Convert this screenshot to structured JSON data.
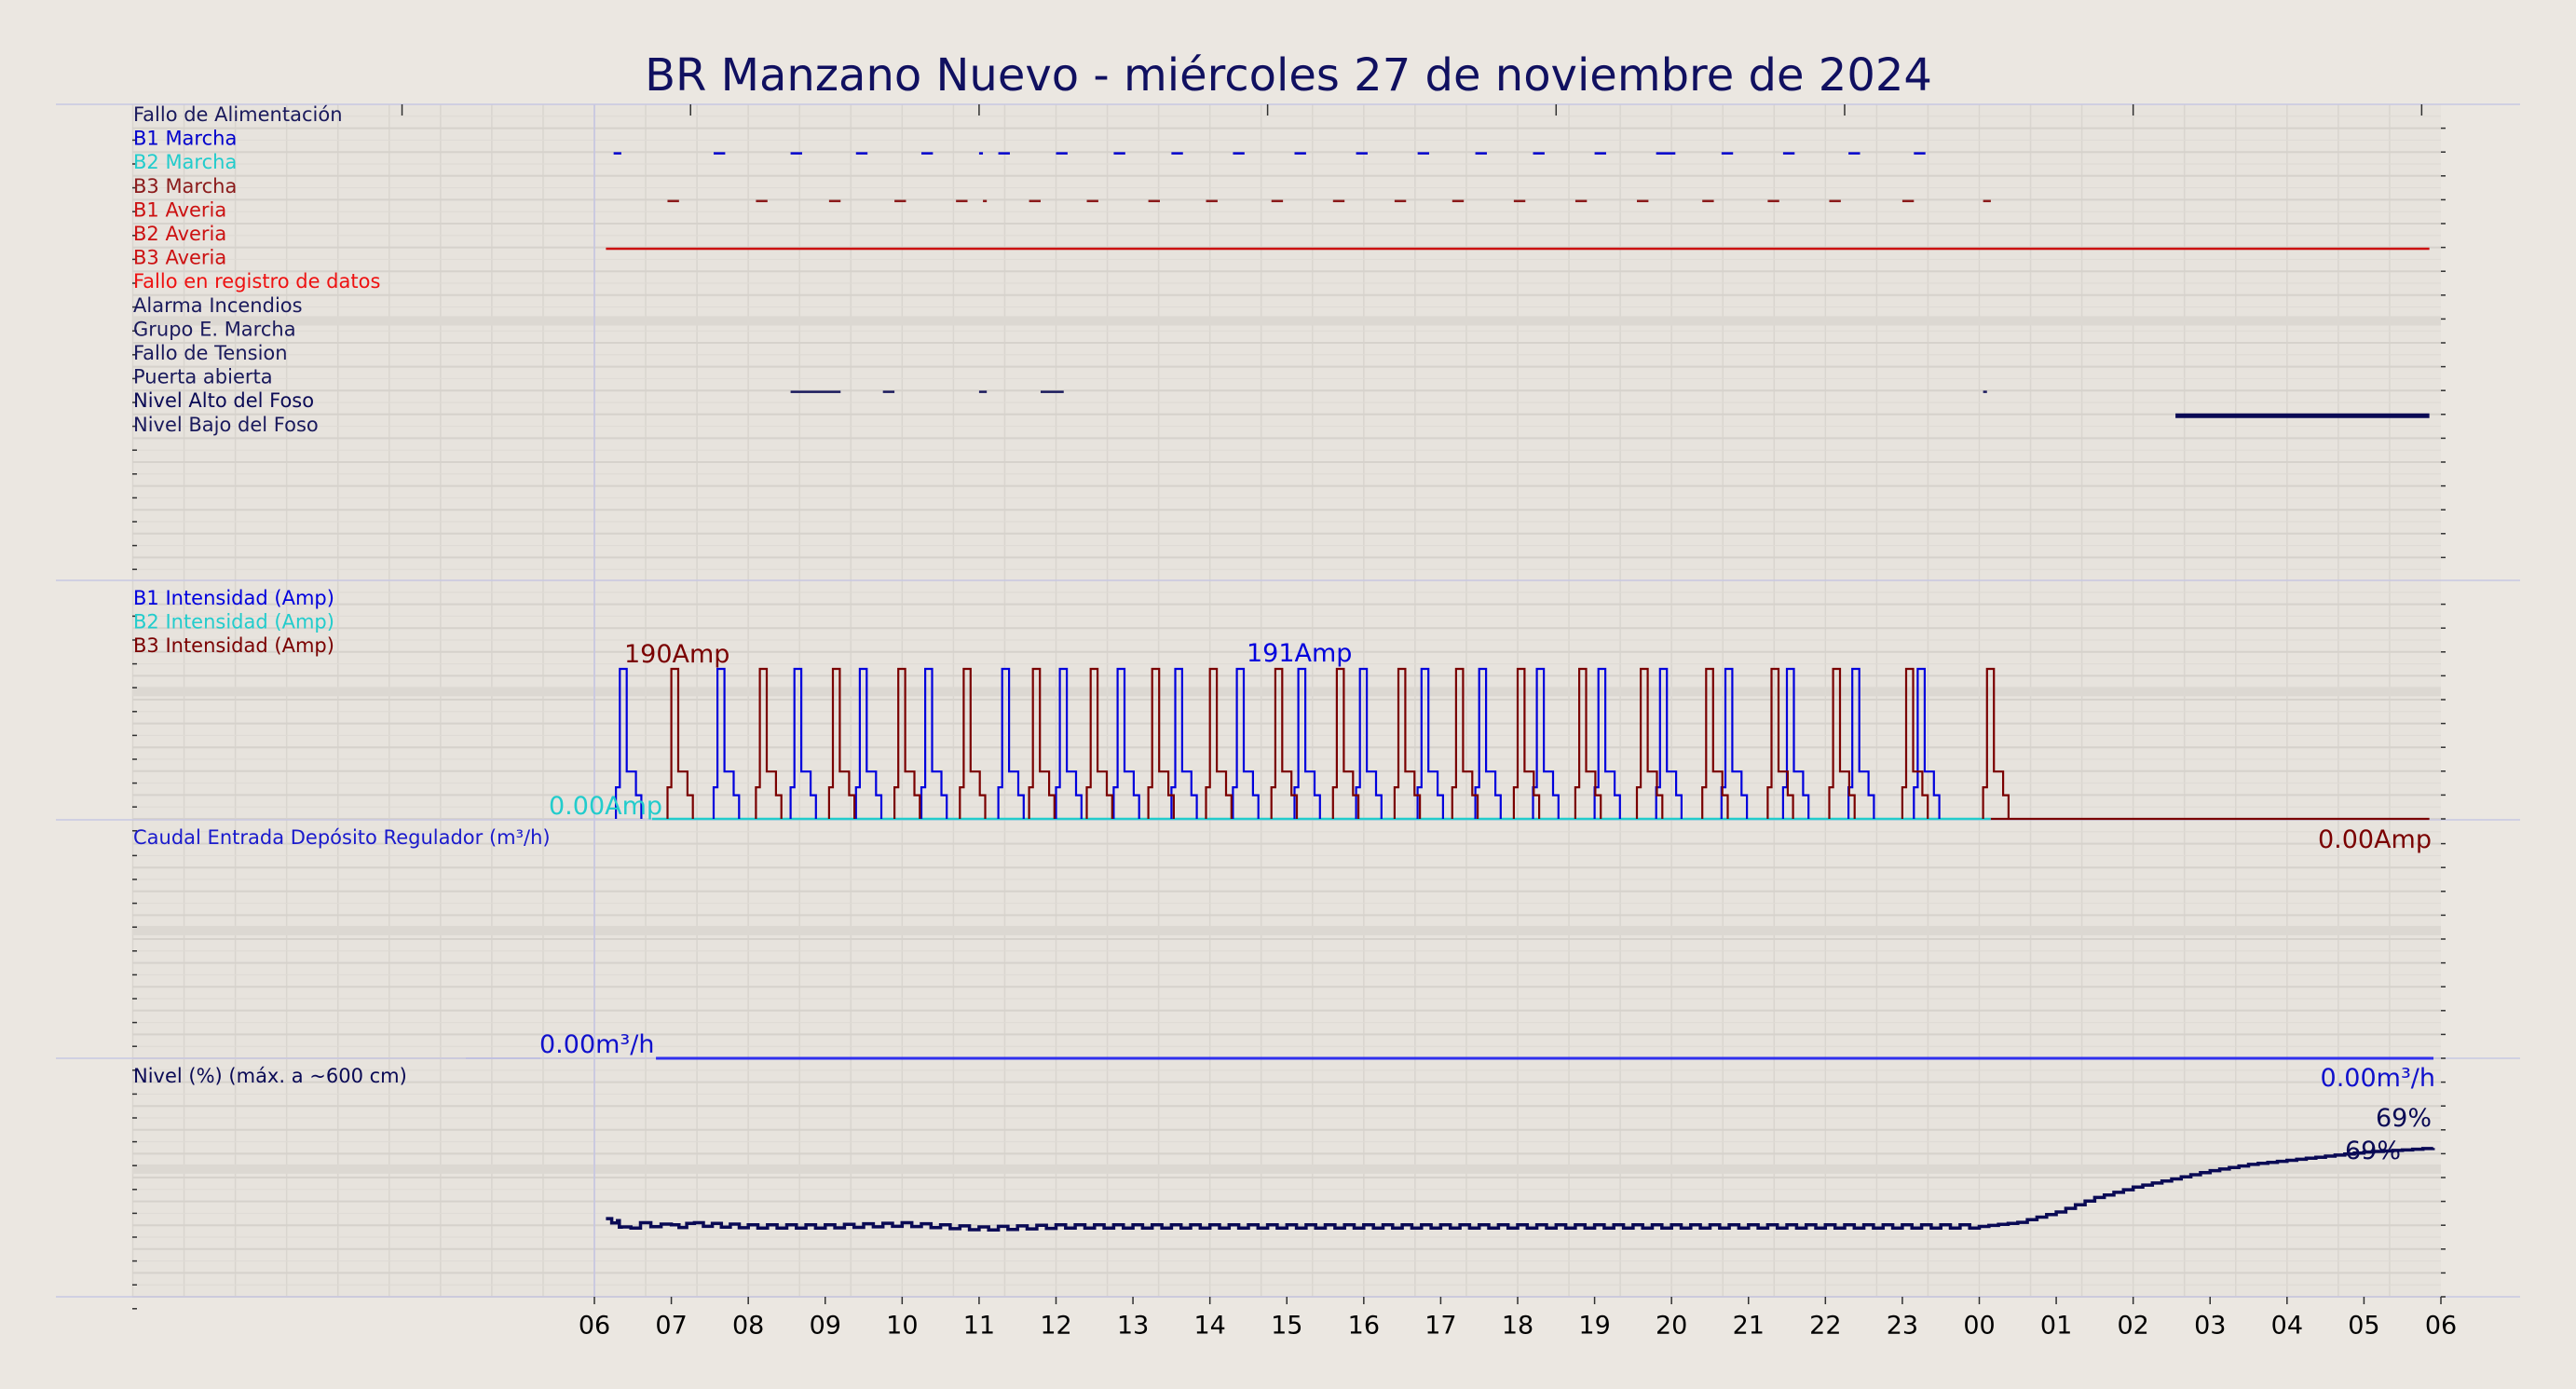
{
  "chart_data": {
    "type": "line",
    "title": "BR Manzano Nuevo   -   miércoles 27 de noviembre de 2024",
    "x_tick_labels": [
      "06",
      "07",
      "08",
      "09",
      "10",
      "11",
      "12",
      "13",
      "14",
      "15",
      "16",
      "17",
      "18",
      "19",
      "20",
      "21",
      "22",
      "23",
      "00",
      "01",
      "02",
      "03",
      "04",
      "05",
      "06"
    ],
    "x_unit": "hour",
    "x_range_hours": [
      0,
      24
    ],
    "top_marks_hours": [
      -2.5,
      1.25,
      5,
      8.75,
      12.5,
      16.25,
      20,
      23.75
    ],
    "grid": true,
    "panels": [
      {
        "id": "status",
        "type": "event_timeline",
        "rows": [
          {
            "label": "Fallo de Alimentación",
            "color": "#1a1a5c",
            "segments": []
          },
          {
            "label": "B1 Marcha",
            "color": "#0000cc",
            "segments": [
              [
                0.25,
                0.35
              ],
              [
                1.55,
                1.7
              ],
              [
                2.55,
                2.7
              ],
              [
                3.4,
                3.55
              ],
              [
                4.25,
                4.4
              ],
              [
                5.0,
                5.05
              ],
              [
                5.25,
                5.4
              ],
              [
                6.0,
                6.15
              ],
              [
                6.75,
                6.9
              ],
              [
                7.5,
                7.65
              ],
              [
                8.3,
                8.45
              ],
              [
                9.1,
                9.25
              ],
              [
                9.9,
                10.05
              ],
              [
                10.7,
                10.85
              ],
              [
                11.45,
                11.6
              ],
              [
                12.2,
                12.35
              ],
              [
                13.0,
                13.15
              ],
              [
                13.8,
                14.05
              ],
              [
                14.65,
                14.8
              ],
              [
                15.45,
                15.6
              ],
              [
                16.3,
                16.45
              ],
              [
                17.15,
                17.3
              ]
            ]
          },
          {
            "label": "B2 Marcha",
            "color": "#22cccc",
            "segments": []
          },
          {
            "label": "B3 Marcha",
            "color": "#8b1a1a",
            "segments": [
              [
                0.95,
                1.1
              ],
              [
                2.1,
                2.25
              ],
              [
                3.05,
                3.2
              ],
              [
                3.9,
                4.05
              ],
              [
                4.7,
                4.85
              ],
              [
                5.05,
                5.1
              ],
              [
                5.65,
                5.8
              ],
              [
                6.4,
                6.55
              ],
              [
                7.2,
                7.35
              ],
              [
                7.95,
                8.1
              ],
              [
                8.8,
                8.95
              ],
              [
                9.6,
                9.75
              ],
              [
                10.4,
                10.55
              ],
              [
                11.15,
                11.3
              ],
              [
                11.95,
                12.1
              ],
              [
                12.75,
                12.9
              ],
              [
                13.55,
                13.7
              ],
              [
                14.4,
                14.55
              ],
              [
                15.25,
                15.4
              ],
              [
                16.05,
                16.2
              ],
              [
                17.0,
                17.15
              ],
              [
                18.05,
                18.15
              ]
            ]
          },
          {
            "label": "B1 Averia",
            "color": "#cc1111",
            "segments": []
          },
          {
            "label": "B2 Averia",
            "color": "#cc1111",
            "segments": [
              [
                0.15,
                23.85
              ]
            ]
          },
          {
            "label": "B3 Averia",
            "color": "#cc1111",
            "segments": []
          },
          {
            "label": "Fallo en registro de datos",
            "color": "#ee1111",
            "segments": []
          },
          {
            "label": "Alarma Incendios",
            "color": "#1a1a5c",
            "segments": []
          },
          {
            "label": "Grupo E. Marcha",
            "color": "#1a1a5c",
            "segments": []
          },
          {
            "label": "Fallo de Tension",
            "color": "#1a1a5c",
            "segments": []
          },
          {
            "label": "Puerta abierta",
            "color": "#1a1a5c",
            "segments": [
              [
                2.55,
                3.2
              ],
              [
                3.75,
                3.9
              ],
              [
                5.0,
                5.1
              ],
              [
                5.8,
                6.1
              ],
              [
                18.05,
                18.1
              ]
            ]
          },
          {
            "label": "Nivel Alto del Foso",
            "color": "#0a0a55",
            "segments": [
              [
                20.55,
                23.85
              ]
            ]
          },
          {
            "label": "Nivel Bajo del Foso",
            "color": "#1a1a5c",
            "segments": []
          }
        ]
      },
      {
        "id": "intensity",
        "type": "line",
        "ylim": [
          0,
          200
        ],
        "series": [
          {
            "name": "B1 Intensidad (Amp)",
            "color": "#0000dd",
            "starts": [
              0.28,
              1.55,
              2.55,
              3.4,
              4.25,
              5.25,
              6.0,
              6.75,
              7.5,
              8.3,
              9.1,
              9.9,
              10.7,
              11.45,
              12.2,
              13.0,
              13.8,
              14.65,
              15.45,
              16.3,
              17.15
            ]
          },
          {
            "name": "B2 Intensidad (Amp)",
            "color": "#22cccc",
            "starts": []
          },
          {
            "name": "B3 Intensidad (Amp)",
            "color": "#7a0000",
            "starts": [
              0.95,
              2.1,
              3.05,
              3.9,
              4.75,
              5.65,
              6.4,
              7.2,
              7.95,
              8.8,
              9.6,
              10.4,
              11.15,
              11.95,
              12.75,
              13.55,
              14.4,
              15.25,
              16.05,
              17.0,
              18.05
            ]
          }
        ],
        "pulse_peak_amp": 190,
        "pulse_duration_h": 0.33,
        "b2_baseline_amp": 0,
        "active_until_h": 18.15,
        "annotations": [
          {
            "text": "190Amp",
            "color": "#7a0000"
          },
          {
            "text": "191Amp",
            "color": "#0000dd"
          },
          {
            "text": "0.00Amp",
            "color": "#22cccc"
          },
          {
            "text": "0.00Amp",
            "color": "#7a0000"
          }
        ]
      },
      {
        "id": "flow",
        "type": "line",
        "ylim": [
          0,
          10
        ],
        "series": [
          {
            "name": "Caudal Entrada Depósito Regulador (m³/h)",
            "color": "#3030ee",
            "x": [
              0.8,
              24
            ],
            "y": [
              0,
              0
            ]
          }
        ],
        "annotations": [
          {
            "text": "0.00m³/h",
            "color": "#1010cc"
          },
          {
            "text": "0.00m³/h",
            "color": "#1010cc"
          }
        ]
      },
      {
        "id": "level",
        "type": "line",
        "ylim": [
          0,
          100
        ],
        "series": [
          {
            "name": "Nivel (%) (máx. a ~600 cm)",
            "color": "#0a0a55",
            "x": [
              0.15,
              0.3,
              0.35,
              0.6,
              1.0,
              1.3,
              2.0,
              3.0,
              4.0,
              5.0,
              6.0,
              7.0,
              8.0,
              9.0,
              10.0,
              11.0,
              12.0,
              13.0,
              14.0,
              15.0,
              16.0,
              17.0,
              18.0,
              18.5,
              19.0,
              19.5,
              20.0,
              20.5,
              21.0,
              21.5,
              22.0,
              22.5,
              23.0,
              23.5,
              23.9
            ],
            "y": [
              37,
              36,
              33,
              35,
              34,
              35,
              34,
              34,
              35,
              33,
              34,
              34,
              34,
              34,
              34,
              34,
              34,
              34,
              34,
              34,
              34,
              34,
              34,
              36,
              41,
              48,
              53,
              57,
              61,
              64,
              66,
              68,
              70,
              71,
              72
            ]
          }
        ],
        "annotations": [
          {
            "text": "69%",
            "color": "#0a0a55"
          },
          {
            "text": "69%",
            "color": "#0a0a55"
          }
        ]
      }
    ]
  }
}
